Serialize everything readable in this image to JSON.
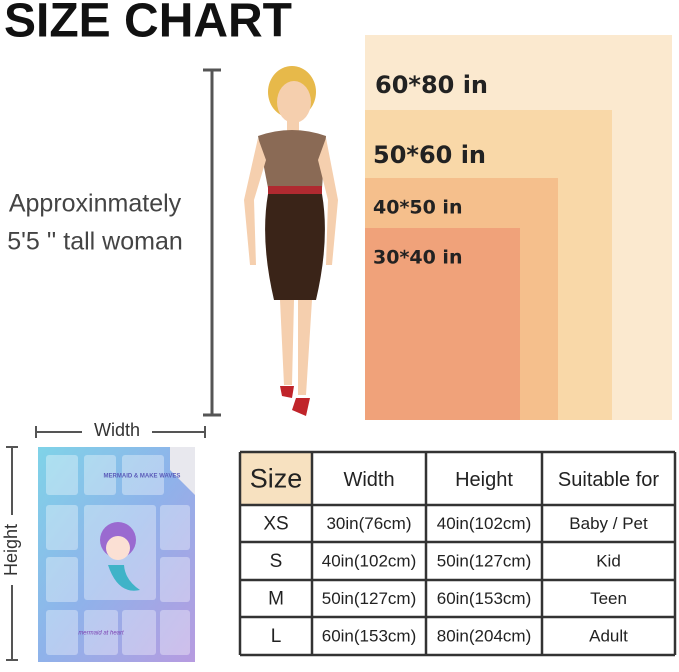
{
  "title": "SIZE CHART",
  "sizes": [
    {
      "label": "60*80 in"
    },
    {
      "label": "50*60 in"
    },
    {
      "label": "40*50 in"
    },
    {
      "label": "30*40 in"
    }
  ],
  "woman": {
    "line1": "Approxinmately",
    "line2": "5'5 '' tall woman"
  },
  "blanket": {
    "width_label": "Width",
    "height_label": "Height",
    "badge": "MERMAID & MAKE WAVES",
    "script_text": "mermaid at heart"
  },
  "table": {
    "header": [
      "Size",
      "Width",
      "Height",
      "Suitable for"
    ],
    "rows": [
      [
        "XS",
        "30in(76cm)",
        "40in(102cm)",
        "Baby / Pet"
      ],
      [
        "S",
        "40in(102cm)",
        "50in(127cm)",
        "Kid"
      ],
      [
        "M",
        "50in(127cm)",
        "60in(153cm)",
        "Teen"
      ],
      [
        "L",
        "60in(153cm)",
        "80in(204cm)",
        "Adult"
      ]
    ]
  }
}
